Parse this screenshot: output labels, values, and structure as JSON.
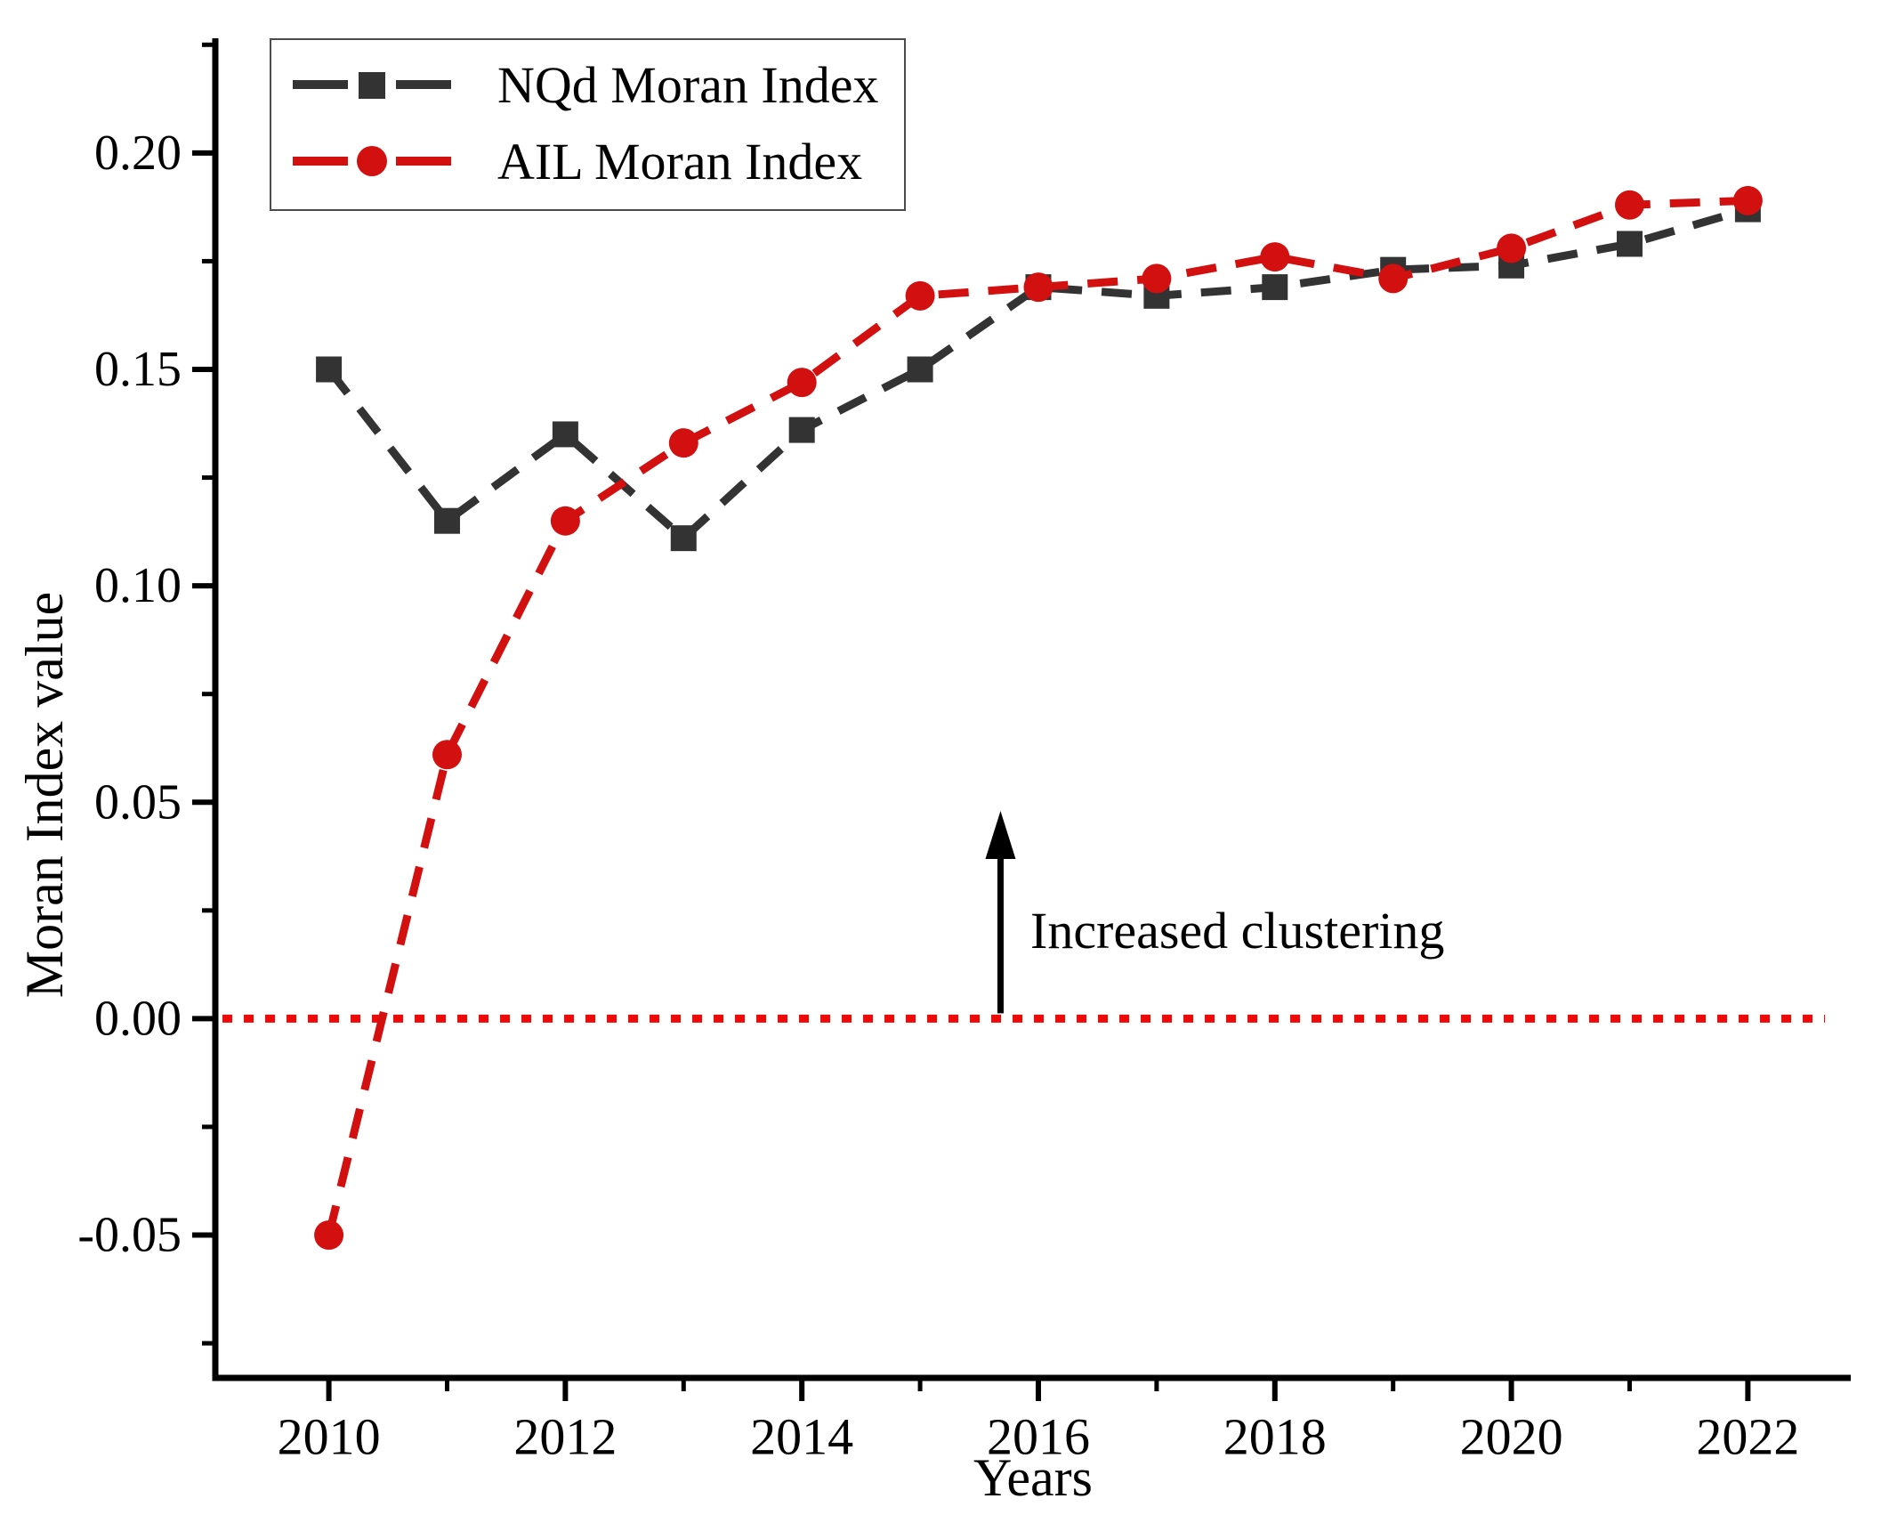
{
  "chart_data": {
    "type": "line",
    "title": "",
    "xlabel": "Years",
    "ylabel": "Moran Index value",
    "x": [
      2010,
      2011,
      2012,
      2013,
      2014,
      2015,
      2016,
      2017,
      2018,
      2019,
      2020,
      2021,
      2022
    ],
    "series": [
      {
        "name": "NQd Moran Index",
        "marker": "square",
        "color": "#333333",
        "line_style": "dashed",
        "values": [
          0.15,
          0.115,
          0.135,
          0.111,
          0.136,
          0.15,
          0.169,
          0.167,
          0.169,
          0.173,
          0.174,
          0.179,
          0.187
        ]
      },
      {
        "name": "AIL Moran Index",
        "marker": "circle",
        "color": "#D21010",
        "line_style": "dashed",
        "values": [
          -0.05,
          0.061,
          0.115,
          0.133,
          0.147,
          0.167,
          0.169,
          0.171,
          0.176,
          0.171,
          0.178,
          0.188,
          0.189
        ]
      }
    ],
    "xlim": [
      2009.04,
      2022.87
    ],
    "ylim": [
      -0.083,
      0.2265
    ],
    "x_ticks_major": {
      "values": [
        2010,
        2012,
        2014,
        2016,
        2018,
        2020,
        2022
      ],
      "labels": [
        "2010",
        "2012",
        "2014",
        "2016",
        "2018",
        "2020",
        "2022"
      ]
    },
    "x_ticks_minor": [
      2011,
      2013,
      2015,
      2017,
      2019,
      2021
    ],
    "y_ticks_major": {
      "values": [
        0.2,
        0.15,
        0.1,
        0.05,
        0.0,
        -0.05
      ],
      "labels": [
        "0.20",
        "0.15",
        "0.10",
        "0.05",
        "0.00",
        "-0.05"
      ]
    },
    "y_ticks_minor": [
      0.225,
      0.175,
      0.125,
      0.075,
      0.025,
      -0.025,
      -0.075
    ],
    "grid": false,
    "legend_position": "top-left",
    "reference_line": {
      "y": 0.0,
      "color": "#EF0A0A",
      "style": "dotted"
    },
    "annotation": {
      "text": "Increased clustering",
      "arrow_x": 2015.68,
      "arrow_y_from": 0.0,
      "arrow_y_to": 0.048,
      "color": "#000000"
    },
    "axis_color": "#000000"
  },
  "legend": {
    "items": [
      {
        "label": "NQd Moran Index"
      },
      {
        "label": "AIL Moran Index"
      }
    ]
  },
  "titles": {
    "x_axis": "Years",
    "y_axis": "Moran Index value"
  }
}
